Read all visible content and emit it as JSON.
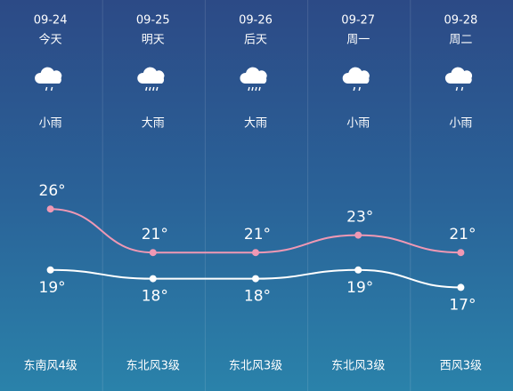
{
  "days": [
    {
      "date": "09-24",
      "day": "今天",
      "weather": "小雨",
      "high": 26,
      "high_label": "26°",
      "low": 19,
      "low_label": "19°",
      "wind": "东南风4级"
    },
    {
      "date": "09-25",
      "day": "明天",
      "weather": "大雨",
      "high": 21,
      "high_label": "21°",
      "low": 18,
      "low_label": "18°",
      "wind": "东北风3级"
    },
    {
      "date": "09-26",
      "day": "后天",
      "weather": "大雨",
      "high": 21,
      "high_label": "21°",
      "low": 18,
      "low_label": "18°",
      "wind": "东北风3级"
    },
    {
      "date": "09-27",
      "day": "周一",
      "weather": "小雨",
      "high": 23,
      "high_label": "23°",
      "low": 19,
      "low_label": "19°",
      "wind": "东北风3级"
    },
    {
      "date": "09-28",
      "day": "周二",
      "weather": "小雨",
      "high": 21,
      "high_label": "21°",
      "low": 17,
      "low_label": "17°",
      "wind": "西风3级"
    }
  ]
}
